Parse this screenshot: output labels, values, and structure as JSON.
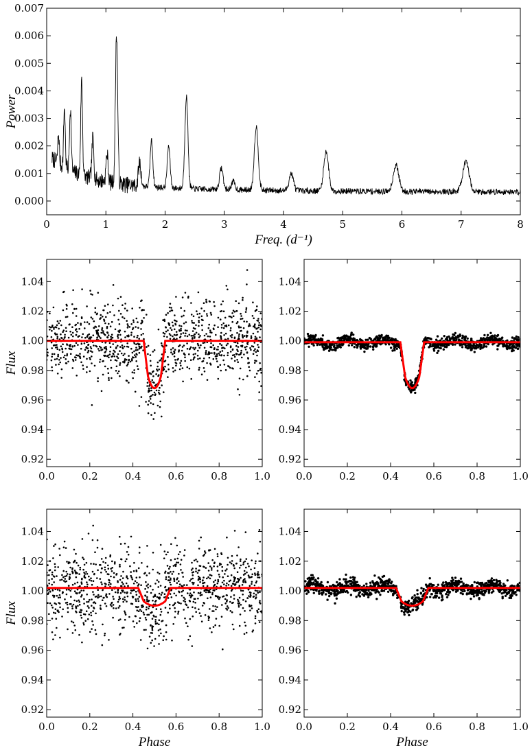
{
  "chart_data": [
    {
      "type": "line",
      "xlabel": "Freq. (d⁻¹)",
      "ylabel": "Power",
      "xlim": [
        0,
        8
      ],
      "ylim": [
        -0.0005,
        0.007
      ],
      "xticks": [
        "0",
        "1",
        "2",
        "3",
        "4",
        "5",
        "6",
        "7",
        "8"
      ],
      "yticks": [
        "0.000",
        "0.001",
        "0.002",
        "0.003",
        "0.004",
        "0.005",
        "0.006",
        "0.007"
      ],
      "grid": false,
      "series": [
        {
          "color": "#000000",
          "peaks": [
            {
              "x": 0.2,
              "y": 0.0024
            },
            {
              "x": 0.3,
              "y": 0.0034
            },
            {
              "x": 0.4,
              "y": 0.0034
            },
            {
              "x": 0.59,
              "y": 0.0044
            },
            {
              "x": 0.78,
              "y": 0.0023
            },
            {
              "x": 1.02,
              "y": 0.0017
            },
            {
              "x": 1.18,
              "y": 0.0061
            },
            {
              "x": 1.57,
              "y": 0.0014
            },
            {
              "x": 1.77,
              "y": 0.0022
            },
            {
              "x": 2.06,
              "y": 0.002
            },
            {
              "x": 2.36,
              "y": 0.0038
            },
            {
              "x": 2.95,
              "y": 0.0012
            },
            {
              "x": 3.15,
              "y": 0.0007
            },
            {
              "x": 3.54,
              "y": 0.0027
            },
            {
              "x": 4.13,
              "y": 0.001
            },
            {
              "x": 4.72,
              "y": 0.0018
            },
            {
              "x": 5.9,
              "y": 0.0013
            },
            {
              "x": 7.08,
              "y": 0.0014
            }
          ]
        }
      ]
    },
    {
      "type": "scatter",
      "xlabel": "",
      "ylabel": "Flux",
      "xlim": [
        0,
        1
      ],
      "ylim": [
        0.915,
        1.055
      ],
      "xticks": [
        "0.0",
        "0.2",
        "0.4",
        "0.6",
        "0.8",
        "1.0"
      ],
      "yticks": [
        "0.92",
        "0.94",
        "0.96",
        "0.98",
        "1.00",
        "1.02",
        "1.04"
      ],
      "grid": false,
      "points": {
        "color": "#000000",
        "n": 1100,
        "scatter": 0.013
      },
      "model": {
        "color": "#ff0000",
        "baseline": 1.0,
        "depth": 0.032,
        "center": 0.5,
        "half_width": 0.05,
        "ingress": 0.02
      }
    },
    {
      "type": "scatter",
      "xlabel": "",
      "ylabel": "",
      "xlim": [
        0,
        1
      ],
      "ylim": [
        0.915,
        1.055
      ],
      "xticks": [
        "0.0",
        "0.2",
        "0.4",
        "0.6",
        "0.8",
        "1.0"
      ],
      "yticks": [
        "0.92",
        "0.94",
        "0.96",
        "0.98",
        "1.00",
        "1.02",
        "1.04"
      ],
      "grid": false,
      "points": {
        "color": "#000000",
        "n": 1000,
        "scatter": 0.002
      },
      "model": {
        "color": "#ff0000",
        "baseline": 0.999,
        "depth": 0.031,
        "center": 0.5,
        "half_width": 0.055,
        "ingress": 0.022
      }
    },
    {
      "type": "scatter",
      "xlabel": "Phase",
      "ylabel": "Flux",
      "xlim": [
        0,
        1
      ],
      "ylim": [
        0.915,
        1.055
      ],
      "xticks": [
        "0.0",
        "0.2",
        "0.4",
        "0.6",
        "0.8",
        "1.0"
      ],
      "yticks": [
        "0.92",
        "0.94",
        "0.96",
        "0.98",
        "1.00",
        "1.02",
        "1.04"
      ],
      "grid": false,
      "points": {
        "color": "#000000",
        "n": 1100,
        "scatter": 0.014
      },
      "model": {
        "color": "#ff0000",
        "baseline": 1.002,
        "depth": 0.012,
        "center": 0.5,
        "half_width": 0.075,
        "ingress": 0.025
      }
    },
    {
      "type": "scatter",
      "xlabel": "Phase",
      "ylabel": "",
      "xlim": [
        0,
        1
      ],
      "ylim": [
        0.915,
        1.055
      ],
      "xticks": [
        "0.0",
        "0.2",
        "0.4",
        "0.6",
        "0.8",
        "1.0"
      ],
      "yticks": [
        "0.92",
        "0.94",
        "0.96",
        "0.98",
        "1.00",
        "1.02",
        "1.04"
      ],
      "grid": false,
      "points": {
        "color": "#000000",
        "n": 1000,
        "scatter": 0.0025
      },
      "model": {
        "color": "#ff0000",
        "baseline": 1.002,
        "depth": 0.012,
        "center": 0.5,
        "half_width": 0.075,
        "ingress": 0.025
      }
    }
  ]
}
